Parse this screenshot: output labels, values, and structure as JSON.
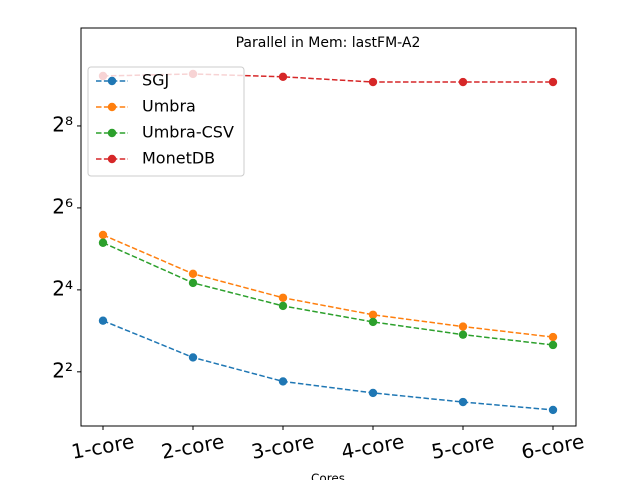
{
  "chart_data": {
    "type": "line",
    "title": "Parallel in Mem: lastFM-A2",
    "x_label": "Cores",
    "categories": [
      "1-core",
      "2-core",
      "3-core",
      "4-core",
      "5-core",
      "6-core"
    ],
    "series": [
      {
        "name": "SGJ",
        "color": "#1f77b4",
        "values": [
          9.5,
          5.1,
          3.4,
          2.8,
          2.4,
          2.1
        ]
      },
      {
        "name": "Umbra",
        "color": "#ff7f0e",
        "values": [
          40.5,
          21,
          14,
          10.5,
          8.6,
          7.2
        ]
      },
      {
        "name": "Umbra-CSV",
        "color": "#2ca02c",
        "values": [
          35.5,
          18,
          12.2,
          9.3,
          7.5,
          6.3
        ]
      },
      {
        "name": "MonetDB",
        "color": "#d62728",
        "values": [
          596,
          617,
          588,
          538,
          538,
          538
        ]
      }
    ],
    "yscale": "log",
    "ybase": 2,
    "ylim": [
      1.6,
      1342
    ],
    "yticks": [
      {
        "value": 4,
        "label": "2²"
      },
      {
        "value": 16,
        "label": "2⁴"
      },
      {
        "value": 64,
        "label": "2⁶"
      },
      {
        "value": 256,
        "label": "2⁸"
      }
    ],
    "legend": "upper left",
    "line_style": "dashed"
  }
}
